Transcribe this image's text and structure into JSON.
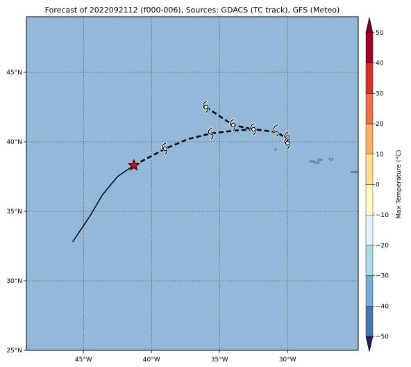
{
  "map": {
    "title": "Forecast of 2022092112 (f000-006), Sources: GDACS (TC track), GFS (Meteo)",
    "lon_range": [
      -49.2,
      -24.8
    ],
    "lat_range": [
      25,
      49
    ],
    "ocean_color": "#94b8da",
    "grid": true,
    "lon_ticks": [
      {
        "value": -45,
        "label": "45°W"
      },
      {
        "value": -40,
        "label": "40°W"
      },
      {
        "value": -35,
        "label": "35°W"
      },
      {
        "value": -30,
        "label": "30°W"
      }
    ],
    "lat_ticks": [
      {
        "value": 25,
        "label": "25°N"
      },
      {
        "value": 30,
        "label": "30°N"
      },
      {
        "value": 35,
        "label": "35°N"
      },
      {
        "value": 40,
        "label": "40°N"
      },
      {
        "value": 45,
        "label": "45°N"
      }
    ],
    "past_track": [
      [
        -45.8,
        32.8
      ],
      [
        -44.5,
        34.7
      ],
      [
        -43.6,
        36.2
      ],
      [
        -42.5,
        37.5
      ],
      [
        -41.3,
        38.3
      ]
    ],
    "current_position": {
      "lon": -41.3,
      "lat": 38.3,
      "color": "#e00000"
    },
    "forecast_track_main": [
      [
        -41.3,
        38.3
      ],
      [
        -39.0,
        39.5
      ],
      [
        -37.3,
        40.2
      ],
      [
        -35.6,
        40.6
      ],
      [
        -34.0,
        40.8
      ],
      [
        -32.5,
        40.9
      ],
      [
        -30.8,
        40.7
      ],
      [
        -30.0,
        40.2
      ],
      [
        -30.0,
        39.9
      ]
    ],
    "forecast_track_branch": [
      [
        -36.0,
        42.5
      ],
      [
        -34.0,
        41.2
      ],
      [
        -32.5,
        40.9
      ]
    ],
    "forecast_points": [
      {
        "lon": -39.0,
        "lat": 39.5,
        "dot": true
      },
      {
        "lon": -35.6,
        "lat": 40.6,
        "dot": false
      },
      {
        "lon": -36.0,
        "lat": 42.5,
        "dot": true
      },
      {
        "lon": -34.0,
        "lat": 41.2,
        "dot": true
      },
      {
        "lon": -32.5,
        "lat": 40.9,
        "dot": true
      },
      {
        "lon": -30.8,
        "lat": 40.8,
        "dot": false
      },
      {
        "lon": -30.0,
        "lat": 40.3,
        "dot": true
      },
      {
        "lon": -30.0,
        "lat": 39.9,
        "dot": true
      }
    ]
  },
  "colorbar": {
    "label": "Max Temperature (°C)",
    "ticks": [
      "50",
      "40",
      "30",
      "20",
      "10",
      "0",
      "−10",
      "−20",
      "−30",
      "−40",
      "−50"
    ],
    "colors": [
      "#a50026",
      "#d73027",
      "#f46d43",
      "#fdae61",
      "#fee090",
      "#ffffbf",
      "#e0f3f8",
      "#abd9e9",
      "#74add1",
      "#4575b4",
      "#313695"
    ],
    "over_color": "#7a0020",
    "under_color": "#1d1f6b"
  }
}
